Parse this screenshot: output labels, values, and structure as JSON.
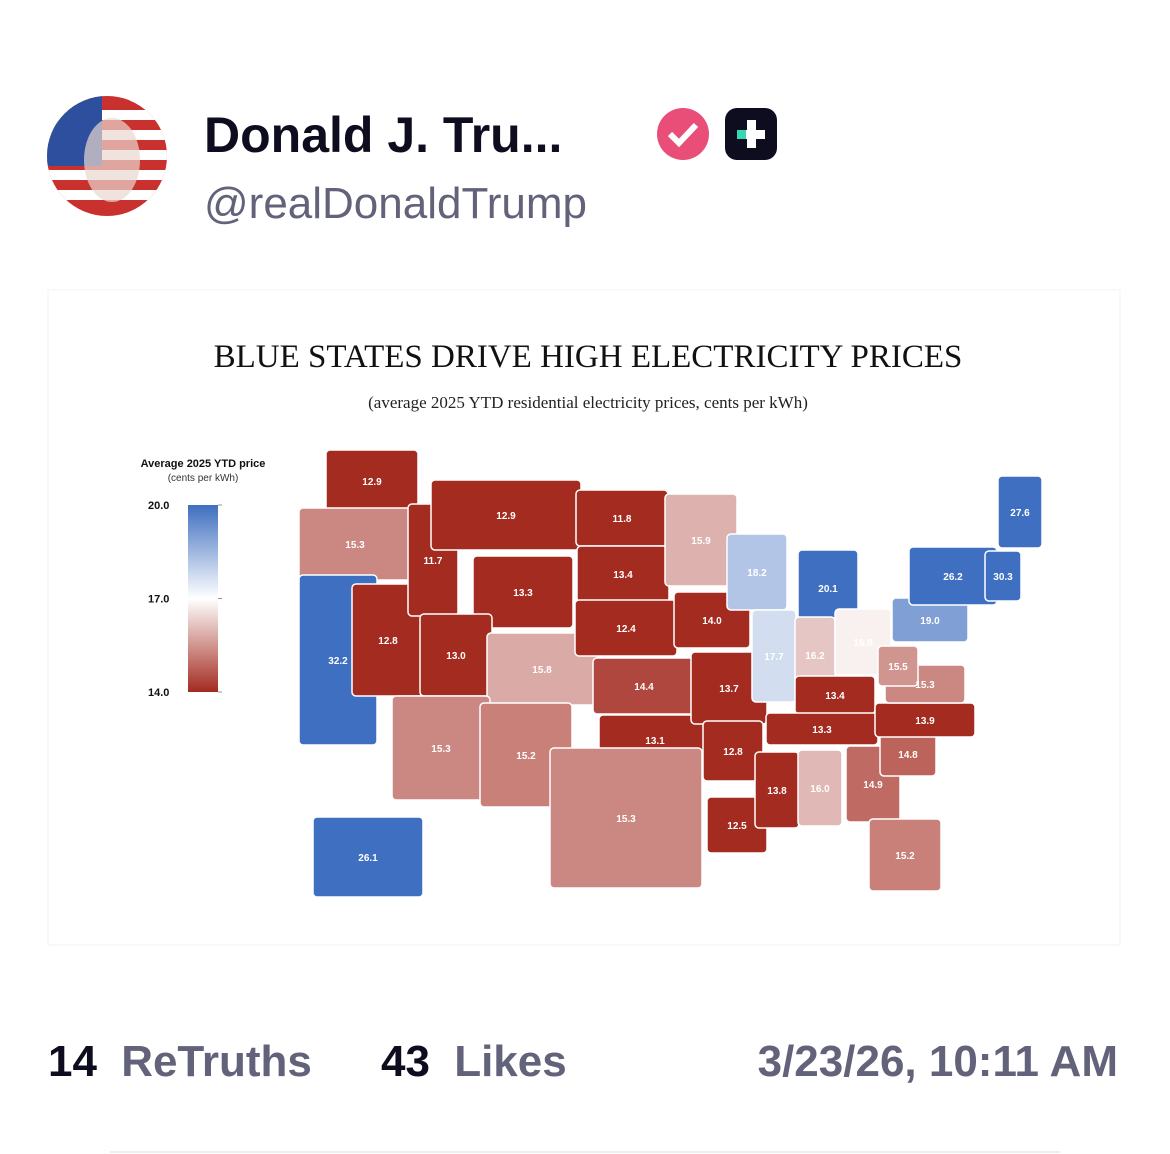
{
  "post": {
    "author": {
      "name": "Donald J. Tru...",
      "handle": "@realDonaldTrump"
    },
    "stats": {
      "retruths": 14,
      "retruths_label": "ReTruths",
      "likes": 43,
      "likes_label": "Likes"
    },
    "timestamp": "3/23/26, 10:11 AM"
  },
  "chart_data": {
    "type": "choropleth",
    "title": "BLUE STATES DRIVE HIGH ELECTRICITY PRICES",
    "subtitle": "(average 2025 YTD residential electricity prices, cents per kWh)",
    "legend": {
      "title": "Average 2025 YTD price",
      "subtitle": "(cents per kWh)",
      "ticks": [
        {
          "value": 20,
          "label": "20.0"
        },
        {
          "value": 17,
          "label": "17.0"
        },
        {
          "value": 14,
          "label": "14.0"
        }
      ],
      "colors": [
        "#3f6fc0",
        "#ffffff",
        "#a32b20"
      ]
    },
    "values": [
      12.9,
      15.3,
      32.2,
      12.8,
      11.7,
      12.9,
      13.3,
      13.0,
      15.8,
      15.3,
      15.2,
      11.8,
      13.4,
      12.4,
      14.4,
      13.1,
      15.3,
      15.9,
      14.0,
      13.7,
      12.8,
      12.5,
      18.2,
      17.7,
      20.1,
      16.2,
      16.8,
      13.4,
      13.3,
      13.8,
      16.0,
      14.9,
      15.2,
      14.8,
      13.9,
      15.3,
      15.5,
      19.0,
      26.2,
      30.3,
      27.6,
      26.1
    ],
    "value_labels": [
      "12.9",
      "15.3",
      "32.2",
      "12.8",
      "11.7",
      "12.9",
      "13.3",
      "13.0",
      "15.8",
      "15.3",
      "15.2",
      "11.8",
      "13.4",
      "12.4",
      "14.4",
      "13.1",
      "15.3",
      "15.9",
      "14.0",
      "13.7",
      "12.8",
      "12.5",
      "18.2",
      "17.7",
      "20.1",
      "16.2",
      "16.8",
      "13.4",
      "13.3",
      "13.8",
      "16.0",
      "14.9",
      "15.2",
      "14.8",
      "13.9",
      "15.3",
      "15.5",
      "19.0",
      "26.2",
      "30.3",
      "27.6",
      "26.1"
    ]
  }
}
